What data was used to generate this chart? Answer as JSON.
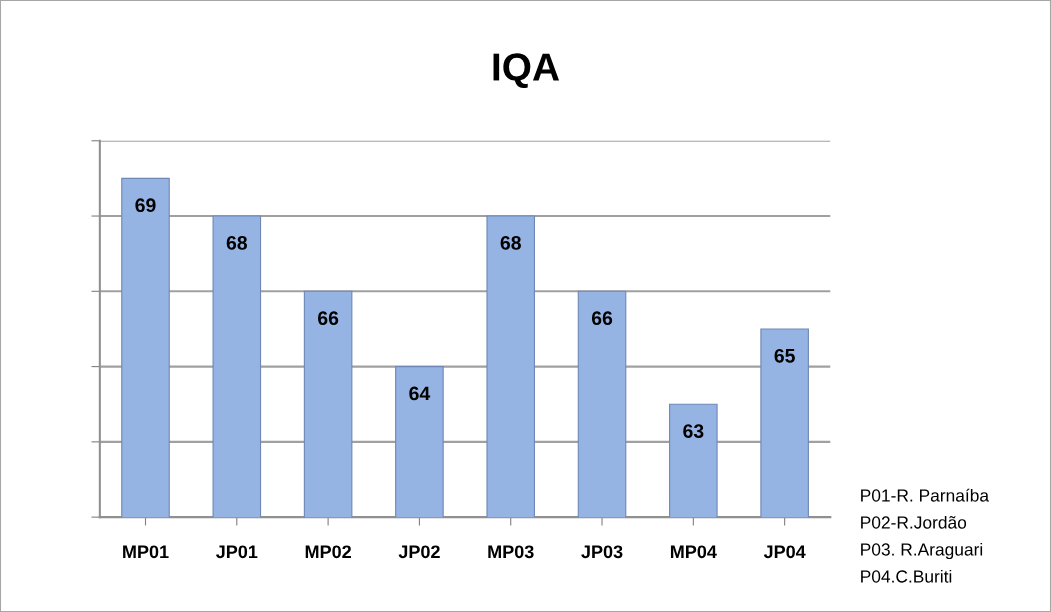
{
  "chart_data": {
    "type": "bar",
    "title": "IQA",
    "categories": [
      "MP01",
      "JP01",
      "MP02",
      "JP02",
      "MP03",
      "JP03",
      "MP04",
      "JP04"
    ],
    "values": [
      69,
      68,
      66,
      64,
      68,
      66,
      63,
      65
    ],
    "color": "#95b3e3",
    "ylim": [
      60,
      70
    ],
    "yticks": [
      {
        "value": 60,
        "label": null
      },
      {
        "value": 62,
        "label": null
      },
      {
        "value": 64,
        "label": null
      },
      {
        "value": 66,
        "label": null
      },
      {
        "value": 68,
        "label": null
      },
      {
        "value": 70,
        "label": null
      }
    ],
    "grid": "y",
    "tick_labels": "x",
    "data_labels": true,
    "annotations": [
      "P01-R. Parnaíba",
      "P02-R.Jordão",
      "P03. R.Araguari",
      "P04.C.Buriti"
    ]
  }
}
